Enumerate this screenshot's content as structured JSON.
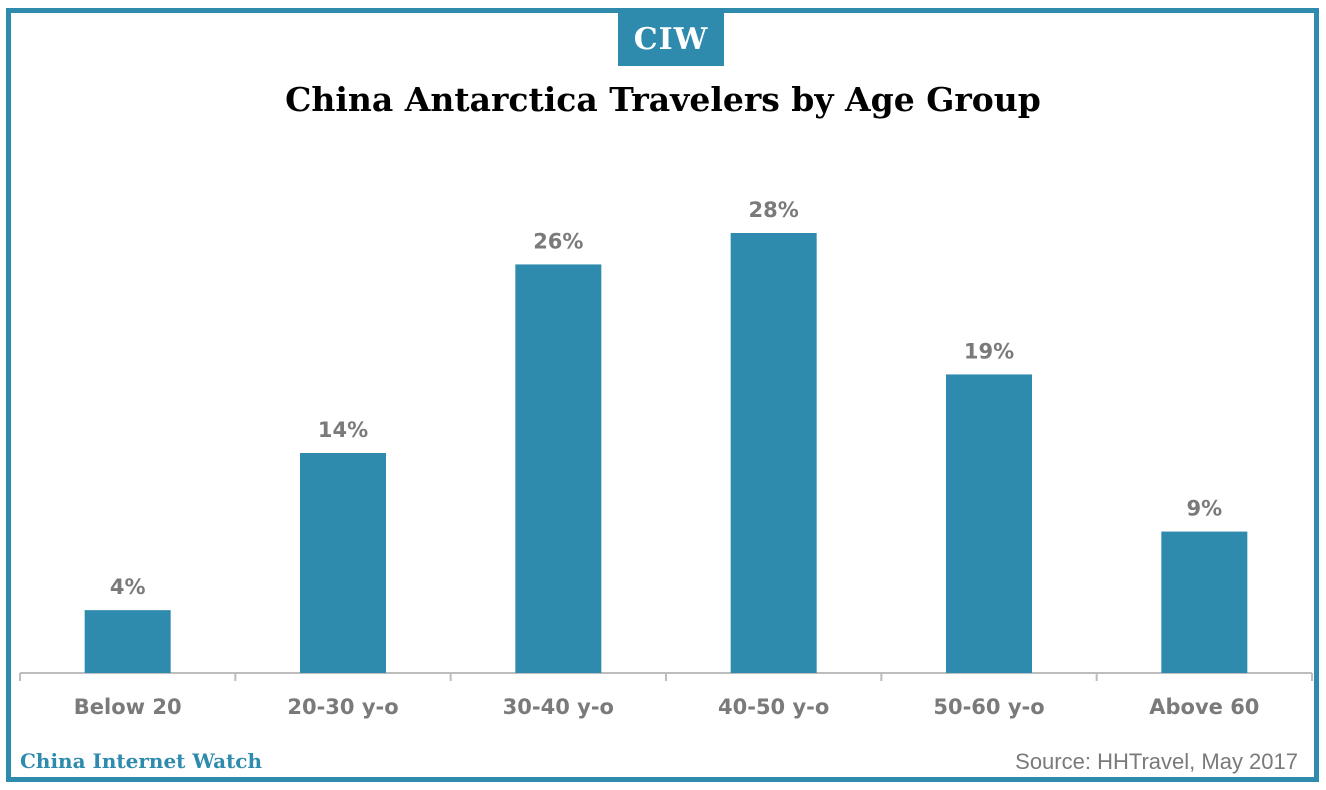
{
  "logo": {
    "text": "CIW"
  },
  "footer": {
    "brand": "China Internet Watch",
    "source": "Source: HHTravel, May 2017"
  },
  "colors": {
    "accent": "#2e8bae",
    "bar": "#2e8bae",
    "label": "#7a7a7a",
    "axis": "#bdbdbd"
  },
  "chart_data": {
    "type": "bar",
    "title": "China Antarctica Travelers by Age Group",
    "categories": [
      "Below 20",
      "20-30 y-o",
      "30-40 y-o",
      "40-50 y-o",
      "50-60 y-o",
      "Above 60"
    ],
    "series": [
      {
        "values": [
          4,
          14,
          26,
          28,
          19,
          9
        ]
      }
    ],
    "data_labels": [
      "4%",
      "14%",
      "26%",
      "28%",
      "19%",
      "9%"
    ],
    "unit": "%",
    "xlabel": "",
    "ylabel": "",
    "ylim": [
      0,
      30
    ],
    "grid": false,
    "legend": "none"
  }
}
